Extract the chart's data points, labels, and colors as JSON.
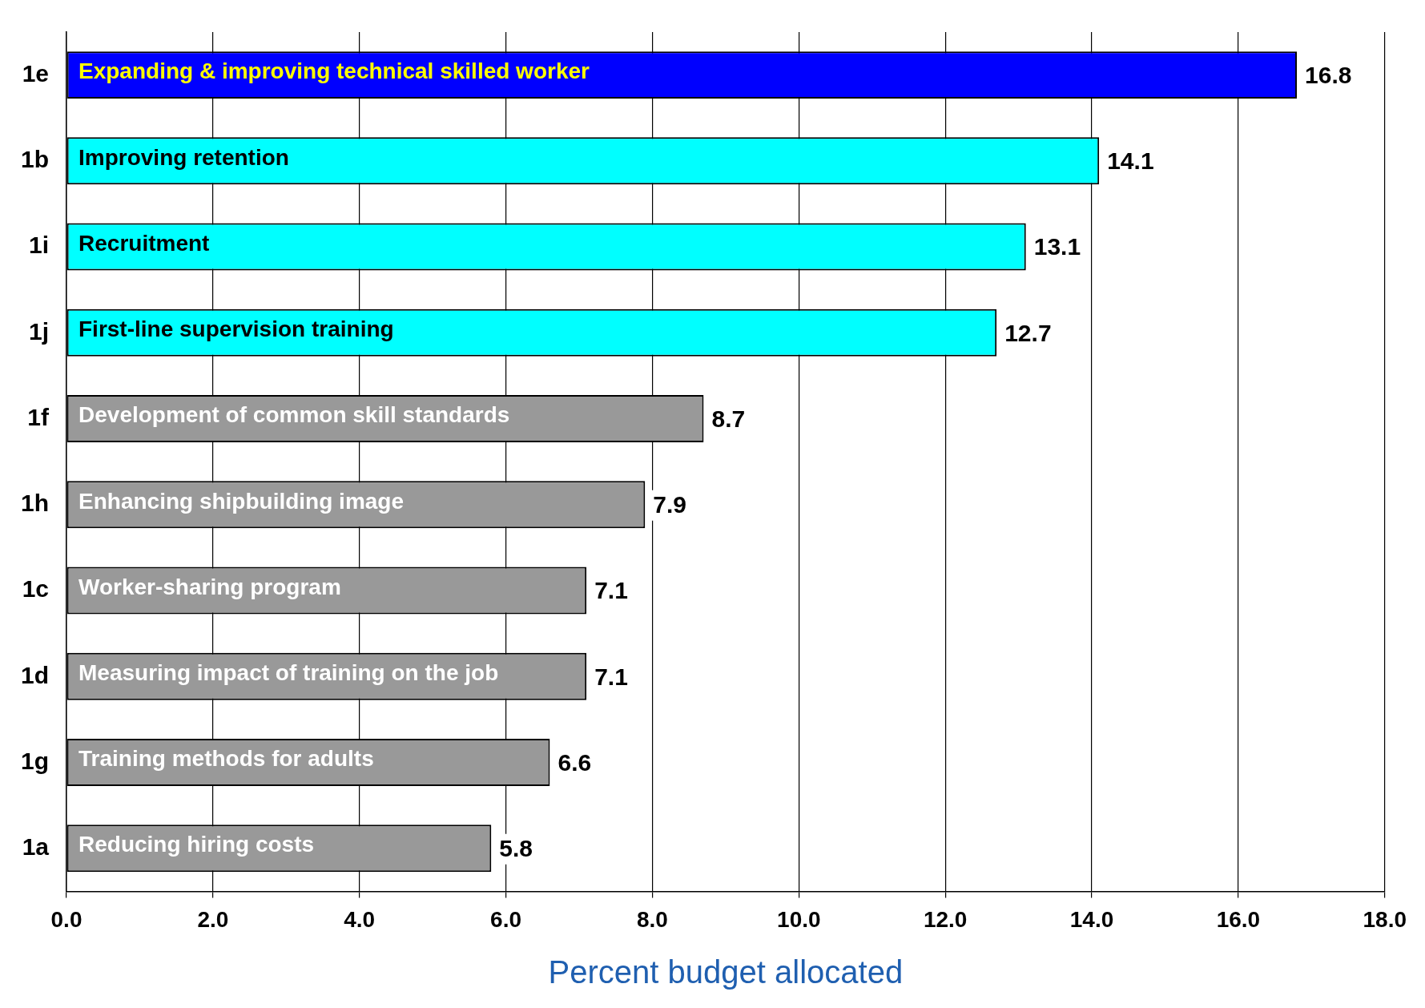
{
  "chart_data": {
    "type": "bar",
    "orientation": "horizontal",
    "xlabel": "Percent budget allocated",
    "categories": [
      "1e",
      "1b",
      "1i",
      "1j",
      "1f",
      "1h",
      "1c",
      "1d",
      "1g",
      "1a"
    ],
    "values": [
      16.8,
      14.1,
      13.1,
      12.7,
      8.7,
      7.9,
      7.1,
      7.1,
      6.6,
      5.8
    ],
    "colors": [
      "#0000ff",
      "#00ffff",
      "#00ffff",
      "#00ffff",
      "#999999",
      "#999999",
      "#999999",
      "#999999",
      "#999999",
      "#999999"
    ],
    "xlim": [
      0,
      18
    ],
    "xticks": [
      {
        "value": 0,
        "label": "0.0"
      },
      {
        "value": 2,
        "label": "2.0"
      },
      {
        "value": 4,
        "label": "4.0"
      },
      {
        "value": 6,
        "label": "6.0"
      },
      {
        "value": 8,
        "label": "8.0"
      },
      {
        "value": 10,
        "label": "10.0"
      },
      {
        "value": 12,
        "label": "12.0"
      },
      {
        "value": 14,
        "label": "14.0"
      },
      {
        "value": 16,
        "label": "16.0"
      },
      {
        "value": 18,
        "label": "18.0"
      }
    ],
    "grid": "x",
    "legend": false,
    "data_labels": true,
    "annotations": [
      "Expanding & improving technical skilled worker",
      "Improving retention",
      "Recruitment",
      "First-line supervision training",
      "Development of common skill standards",
      "Enhancing shipbuilding image",
      "Worker-sharing program",
      "Measuring impact of training on the job",
      "Training methods for adults",
      "Reducing hiring costs"
    ]
  }
}
